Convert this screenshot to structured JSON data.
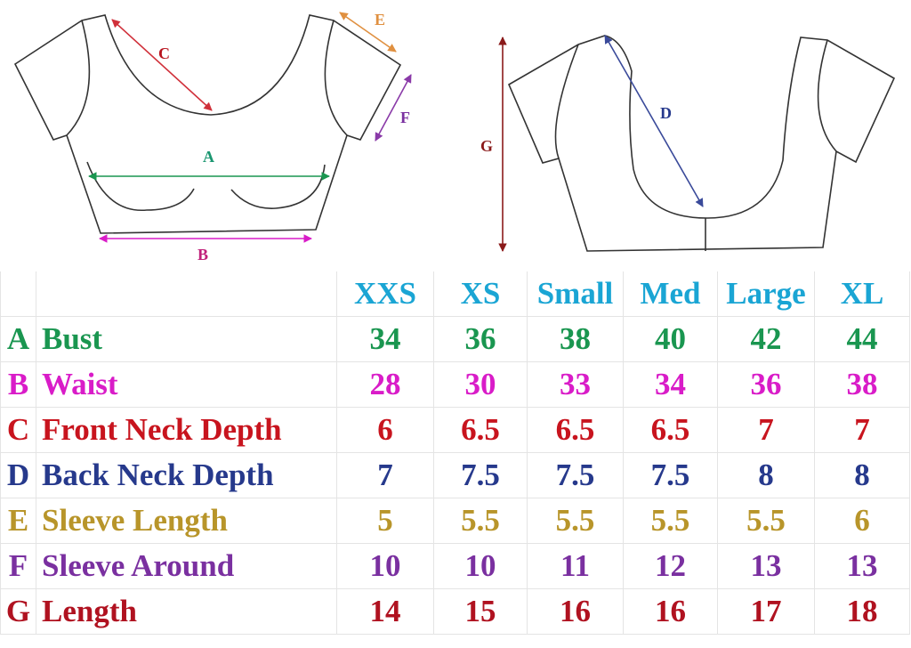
{
  "diagram": {
    "front_labels": {
      "A": "A",
      "B": "B",
      "C": "C",
      "E": "E",
      "F": "F"
    },
    "back_labels": {
      "D": "D",
      "G": "G"
    }
  },
  "colors": {
    "header": "#1aa5d4",
    "A": "#1a9650",
    "B": "#d91cc8",
    "C": "#c8141e",
    "D": "#26398c",
    "E": "#b8952a",
    "F": "#7a30a0",
    "G": "#b01220"
  },
  "table": {
    "sizes": [
      "XXS",
      "XS",
      "Small",
      "Med",
      "Large",
      "XL"
    ],
    "rows": [
      {
        "letter": "A",
        "label": "Bust",
        "values": [
          "34",
          "36",
          "38",
          "40",
          "42",
          "44"
        ]
      },
      {
        "letter": "B",
        "label": "Waist",
        "values": [
          "28",
          "30",
          "33",
          "34",
          "36",
          "38"
        ]
      },
      {
        "letter": "C",
        "label": "Front Neck Depth",
        "values": [
          "6",
          "6.5",
          "6.5",
          "6.5",
          "7",
          "7"
        ]
      },
      {
        "letter": "D",
        "label": "Back Neck Depth",
        "values": [
          "7",
          "7.5",
          "7.5",
          "7.5",
          "8",
          "8"
        ]
      },
      {
        "letter": "E",
        "label": "Sleeve Length",
        "values": [
          "5",
          "5.5",
          "5.5",
          "5.5",
          "5.5",
          "6"
        ]
      },
      {
        "letter": "F",
        "label": "Sleeve Around",
        "values": [
          "10",
          "10",
          "11",
          "12",
          "13",
          "13"
        ]
      },
      {
        "letter": "G",
        "label": "Length",
        "values": [
          "14",
          "15",
          "16",
          "16",
          "17",
          "18"
        ]
      }
    ]
  }
}
